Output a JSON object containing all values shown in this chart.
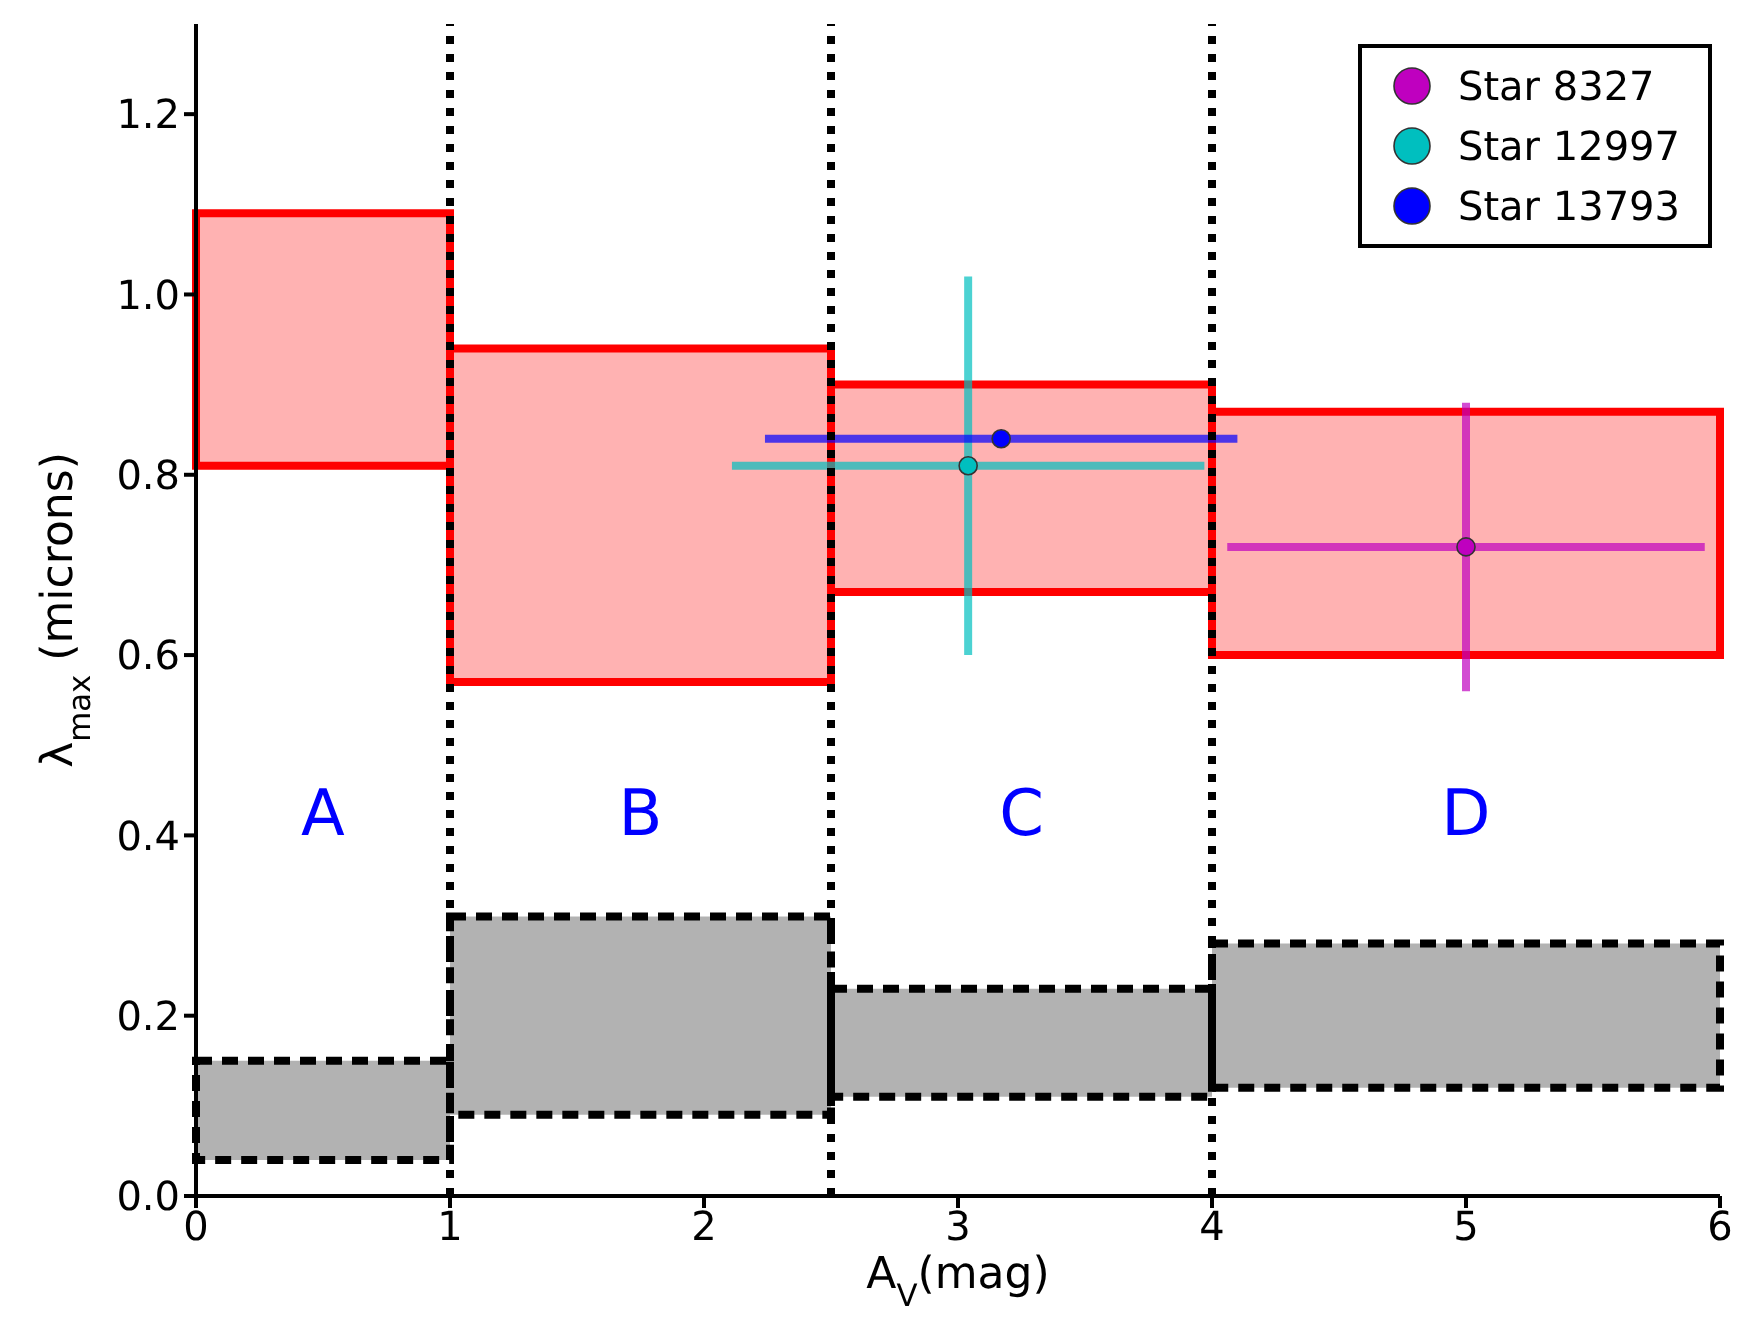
{
  "chart_data": {
    "type": "scatter",
    "xlabel": "A$_{V}$(mag)",
    "ylabel": "λ$_{max}$ (microns)",
    "xlim": [
      0,
      6
    ],
    "xticks": [
      0,
      1,
      2,
      3,
      4,
      5,
      6
    ],
    "ylim": [
      0,
      1.3
    ],
    "yticks": [
      {
        "value": 0,
        "label": "0.0"
      },
      {
        "value": 0.2,
        "label": "0.2"
      },
      {
        "value": 0.4,
        "label": "0.4"
      },
      {
        "value": 0.6,
        "label": "0.6"
      },
      {
        "value": 0.8,
        "label": "0.8"
      },
      {
        "value": 1.0,
        "label": "1.0"
      },
      {
        "value": 1.2,
        "label": "1.2"
      }
    ],
    "grid": false,
    "legend": "top right",
    "marker": "circle",
    "series": [
      {
        "type": "histogram",
        "color": "#ff0000",
        "line_style": "solid",
        "bins": [
          0,
          1,
          2.5,
          4,
          6
        ],
        "base": [
          0.81,
          0.57,
          0.67,
          0.6
        ],
        "values": [
          0.28,
          0.37,
          0.23,
          0.27
        ]
      },
      {
        "type": "histogram",
        "color": "#000000",
        "line_style": "dashed",
        "bins": [
          0,
          1,
          2.5,
          4,
          6
        ],
        "base": [
          0.04,
          0.09,
          0.11,
          0.12
        ],
        "values": [
          0.11,
          0.22,
          0.12,
          0.16
        ]
      },
      {
        "name": "Star 8327",
        "color": "#bf00bf",
        "x": [
          5.0
        ],
        "values": [
          0.72
        ],
        "errors": [
          0.16
        ],
        "xerrors": [
          0.94
        ]
      },
      {
        "name": "Star 12997",
        "color": "#00bfbf",
        "x": [
          3.04
        ],
        "values": [
          0.81
        ],
        "errors": [
          0.21
        ],
        "xerrors": [
          0.93
        ]
      },
      {
        "name": "Star 13793",
        "color": "#0000ff",
        "x": [
          3.17
        ],
        "values": [
          0.84
        ],
        "xerrors": [
          0.93
        ]
      }
    ],
    "ref_lines": [
      {
        "axis": "x",
        "value": 1,
        "color": "#000000",
        "line_style": "dotted"
      },
      {
        "axis": "x",
        "value": 2.5,
        "color": "#000000",
        "line_style": "dotted"
      },
      {
        "axis": "x",
        "value": 4,
        "color": "#000000",
        "line_style": "dotted"
      }
    ],
    "annotations": [
      "A",
      "B",
      "C",
      "D"
    ]
  }
}
